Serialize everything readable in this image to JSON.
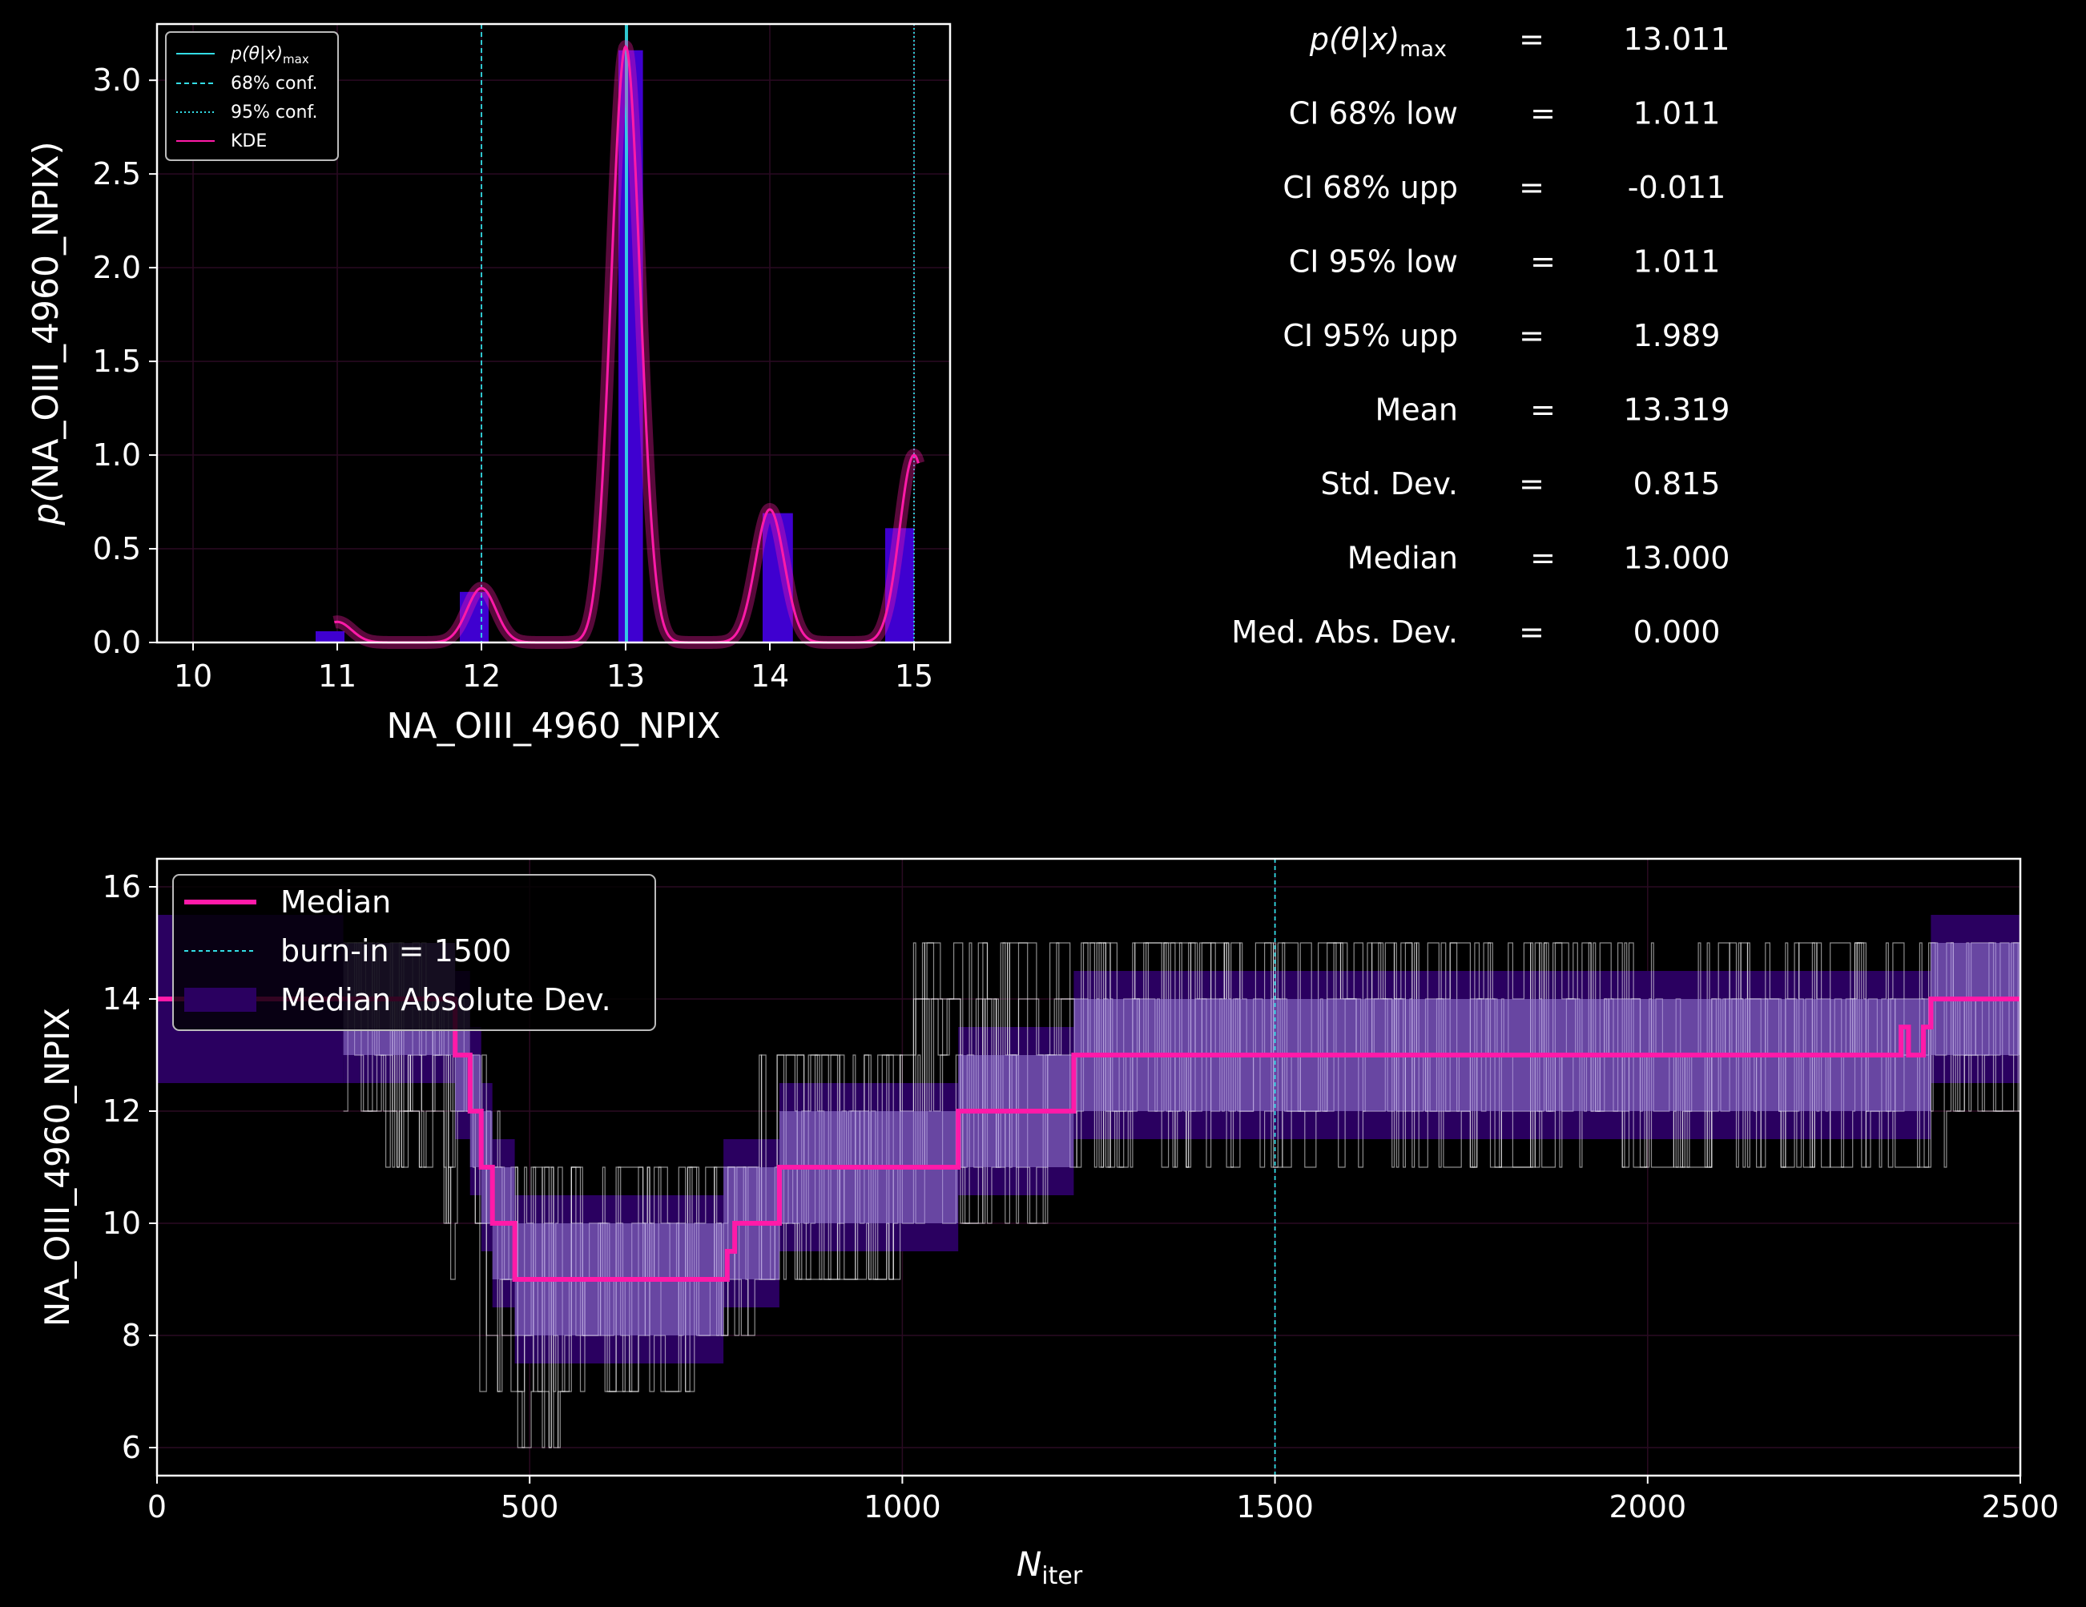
{
  "colors": {
    "background": "#000000",
    "axes": "#ffffff",
    "hist": "#3f00d0",
    "kde": "#ff1aa8",
    "conf": "#33dde6",
    "trace": "#ffffff",
    "mad_outer": "#2a0060",
    "mad_inner": "#9a80d8"
  },
  "stats": [
    {
      "label_html": "p(θ|x)max",
      "label": "p(θ|x)",
      "sub": "max",
      "eq": "=",
      "value": "13.011"
    },
    {
      "label": "CI 68% low",
      "eq": "=",
      "value": "1.011"
    },
    {
      "label": "CI 68% upp",
      "eq": "=",
      "value": "-0.011"
    },
    {
      "label": "CI 95% low",
      "eq": "=",
      "value": "1.011"
    },
    {
      "label": "CI 95% upp",
      "eq": "=",
      "value": "1.989"
    },
    {
      "label": "Mean",
      "eq": "=",
      "value": "13.319"
    },
    {
      "label": "Std.  Dev.",
      "eq": "=",
      "value": "0.815"
    },
    {
      "label": "Median",
      "eq": "=",
      "value": "13.000"
    },
    {
      "label": "Med. Abs. Dev.",
      "eq": "=",
      "value": "0.000"
    }
  ],
  "chart_data": [
    {
      "type": "bar",
      "title": "",
      "xlabel": "NA_OIII_4960_NPIX",
      "ylabel_parts": [
        "p(",
        "NA_OIII_4960_NPIX",
        ")"
      ],
      "xlim": [
        9.75,
        15.25
      ],
      "ylim": [
        0,
        3.3
      ],
      "xticks": [
        10,
        11,
        12,
        13,
        14,
        15
      ],
      "yticks": [
        0.0,
        0.5,
        1.0,
        1.5,
        2.0,
        2.5,
        3.0
      ],
      "ytick_labels": [
        "0.0",
        "0.5",
        "1.0",
        "1.5",
        "2.0",
        "2.5",
        "3.0"
      ],
      "grid": true,
      "legend_position": "top-left",
      "legend": [
        {
          "label": "p(θ|x)",
          "sub": "max",
          "style": "solid"
        },
        {
          "label": "68% conf.",
          "style": "dashed"
        },
        {
          "label": "95% conf.",
          "style": "dotted"
        },
        {
          "label": "KDE",
          "style": "kde"
        }
      ],
      "histogram": [
        {
          "x0": 10.85,
          "x1": 11.05,
          "y": 0.06
        },
        {
          "x0": 11.85,
          "x1": 12.05,
          "y": 0.27
        },
        {
          "x0": 12.95,
          "x1": 13.12,
          "y": 3.16
        },
        {
          "x0": 13.95,
          "x1": 14.16,
          "y": 0.69
        },
        {
          "x0": 14.8,
          "x1": 15.0,
          "y": 0.61
        }
      ],
      "kde_peaks": [
        {
          "mu": 11.0,
          "amp": 0.11,
          "sigma": 0.1
        },
        {
          "mu": 12.0,
          "amp": 0.29,
          "sigma": 0.1
        },
        {
          "mu": 13.0,
          "amp": 3.18,
          "sigma": 0.1
        },
        {
          "mu": 14.0,
          "amp": 0.71,
          "sigma": 0.1
        },
        {
          "mu": 15.0,
          "amp": 1.0,
          "sigma": 0.1
        }
      ],
      "kde_range": [
        10.98,
        15.03
      ],
      "vlines": [
        {
          "x": 13.0,
          "style": "solid"
        },
        {
          "x": 13.011,
          "style": "solid"
        },
        {
          "x": 12.0,
          "style": "dashed"
        },
        {
          "x": 15.0,
          "style": "dotted"
        }
      ]
    },
    {
      "type": "line",
      "title": "",
      "xlabel": "N",
      "xlabel_sub": "iter",
      "ylabel": "NA_OIII_4960_NPIX",
      "xlim": [
        0,
        2500
      ],
      "ylim": [
        5.5,
        16.5
      ],
      "xticks": [
        0,
        500,
        1000,
        1500,
        2000,
        2500
      ],
      "yticks": [
        6,
        8,
        10,
        12,
        14,
        16
      ],
      "grid": true,
      "legend_position": "top-left",
      "legend": [
        {
          "label": "Median",
          "style": "median"
        },
        {
          "label": "burn-in = 1500",
          "style": "dashed"
        },
        {
          "label": "Median Absolute Dev.",
          "style": "band"
        }
      ],
      "burn_in": 1500,
      "median_steps": [
        [
          0,
          14
        ],
        [
          400,
          14
        ],
        [
          400,
          13
        ],
        [
          420,
          13
        ],
        [
          420,
          12
        ],
        [
          435,
          12
        ],
        [
          435,
          11
        ],
        [
          450,
          11
        ],
        [
          450,
          10
        ],
        [
          480,
          10
        ],
        [
          480,
          9
        ],
        [
          765,
          9
        ],
        [
          765,
          9.5
        ],
        [
          775,
          9.5
        ],
        [
          775,
          10
        ],
        [
          835,
          10
        ],
        [
          835,
          11
        ],
        [
          1075,
          11
        ],
        [
          1075,
          12
        ],
        [
          1230,
          12
        ],
        [
          1230,
          13
        ],
        [
          2340,
          13
        ],
        [
          2340,
          13.5
        ],
        [
          2350,
          13.5
        ],
        [
          2350,
          13
        ],
        [
          2370,
          13
        ],
        [
          2370,
          13.5
        ],
        [
          2380,
          13.5
        ],
        [
          2380,
          14
        ],
        [
          2500,
          14
        ]
      ],
      "mad_outer": [
        {
          "x0": 0,
          "x1": 250,
          "lo": 12.5,
          "hi": 15.5
        },
        {
          "x0": 250,
          "x1": 400,
          "lo": 12.5,
          "hi": 15.0
        },
        {
          "x0": 400,
          "x1": 420,
          "lo": 11.5,
          "hi": 14.5
        },
        {
          "x0": 420,
          "x1": 435,
          "lo": 10.5,
          "hi": 13.5
        },
        {
          "x0": 435,
          "x1": 450,
          "lo": 9.5,
          "hi": 12.5
        },
        {
          "x0": 450,
          "x1": 480,
          "lo": 8.5,
          "hi": 11.5
        },
        {
          "x0": 480,
          "x1": 760,
          "lo": 7.5,
          "hi": 10.5
        },
        {
          "x0": 760,
          "x1": 835,
          "lo": 8.5,
          "hi": 11.5
        },
        {
          "x0": 835,
          "x1": 1075,
          "lo": 9.5,
          "hi": 12.5
        },
        {
          "x0": 1075,
          "x1": 1230,
          "lo": 10.5,
          "hi": 13.5
        },
        {
          "x0": 1230,
          "x1": 2380,
          "lo": 11.5,
          "hi": 14.5
        },
        {
          "x0": 2380,
          "x1": 2500,
          "lo": 12.5,
          "hi": 15.5
        }
      ],
      "mad_inner": [
        {
          "x0": 250,
          "x1": 400,
          "lo": 13,
          "hi": 15
        },
        {
          "x0": 400,
          "x1": 420,
          "lo": 12,
          "hi": 14
        },
        {
          "x0": 420,
          "x1": 435,
          "lo": 11,
          "hi": 13
        },
        {
          "x0": 435,
          "x1": 450,
          "lo": 10,
          "hi": 12
        },
        {
          "x0": 450,
          "x1": 480,
          "lo": 9,
          "hi": 11
        },
        {
          "x0": 480,
          "x1": 760,
          "lo": 8,
          "hi": 10
        },
        {
          "x0": 760,
          "x1": 835,
          "lo": 9,
          "hi": 11
        },
        {
          "x0": 835,
          "x1": 1075,
          "lo": 10,
          "hi": 12
        },
        {
          "x0": 1075,
          "x1": 1230,
          "lo": 11,
          "hi": 13
        },
        {
          "x0": 1230,
          "x1": 2380,
          "lo": 12,
          "hi": 14
        },
        {
          "x0": 2380,
          "x1": 2500,
          "lo": 13,
          "hi": 15
        }
      ],
      "trace_envelope": [
        {
          "x0": 250,
          "x1": 300,
          "lo": 12,
          "hi": 15
        },
        {
          "x0": 300,
          "x1": 380,
          "lo": 11,
          "hi": 15
        },
        {
          "x0": 380,
          "x1": 420,
          "lo": 9,
          "hi": 14
        },
        {
          "x0": 420,
          "x1": 460,
          "lo": 7,
          "hi": 13
        },
        {
          "x0": 460,
          "x1": 540,
          "lo": 6,
          "hi": 11
        },
        {
          "x0": 540,
          "x1": 720,
          "lo": 7,
          "hi": 11
        },
        {
          "x0": 720,
          "x1": 800,
          "lo": 8,
          "hi": 11
        },
        {
          "x0": 800,
          "x1": 1000,
          "lo": 9,
          "hi": 13
        },
        {
          "x0": 1000,
          "x1": 1200,
          "lo": 10,
          "hi": 15
        },
        {
          "x0": 1200,
          "x1": 1400,
          "lo": 11,
          "hi": 15
        },
        {
          "x0": 1400,
          "x1": 2400,
          "lo": 11,
          "hi": 15
        },
        {
          "x0": 2400,
          "x1": 2500,
          "lo": 12,
          "hi": 15
        }
      ]
    }
  ]
}
